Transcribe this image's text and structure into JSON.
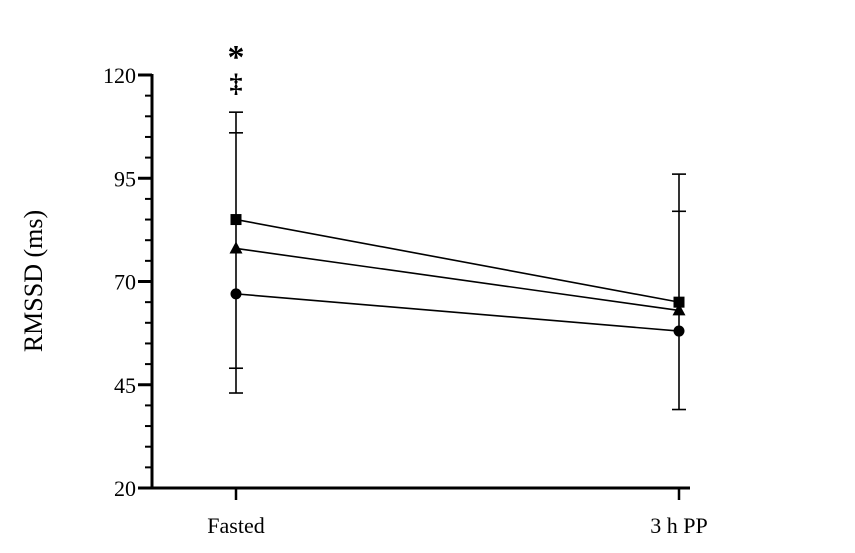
{
  "chart_data": {
    "type": "line",
    "title": "",
    "xlabel": "",
    "ylabel": "RMSSD (ms)",
    "categories": [
      "Fasted",
      "3 h PP"
    ],
    "ylim": [
      20,
      120
    ],
    "yticks": [
      20,
      45,
      70,
      95,
      120
    ],
    "ytick_labels": [
      "20",
      "45",
      "70",
      "95",
      "120"
    ],
    "grid": false,
    "legend": "none",
    "series": [
      {
        "marker": "square",
        "values": [
          85,
          65
        ],
        "error_upper": [
          null,
          null
        ],
        "error_lower": [
          null,
          null
        ]
      },
      {
        "marker": "triangle",
        "values": [
          78,
          63
        ],
        "error_upper": [
          111,
          96
        ],
        "error_lower": [
          null,
          39
        ]
      },
      {
        "marker": "circle",
        "values": [
          67,
          58
        ],
        "error_upper": [
          106,
          87
        ],
        "error_lower": [
          43,
          null
        ]
      }
    ],
    "extra_caps": [
      {
        "category": "Fasted",
        "value": 49
      }
    ],
    "annotations": [
      {
        "category": "Fasted",
        "text": "*"
      },
      {
        "category": "Fasted",
        "text": "‡"
      }
    ]
  }
}
